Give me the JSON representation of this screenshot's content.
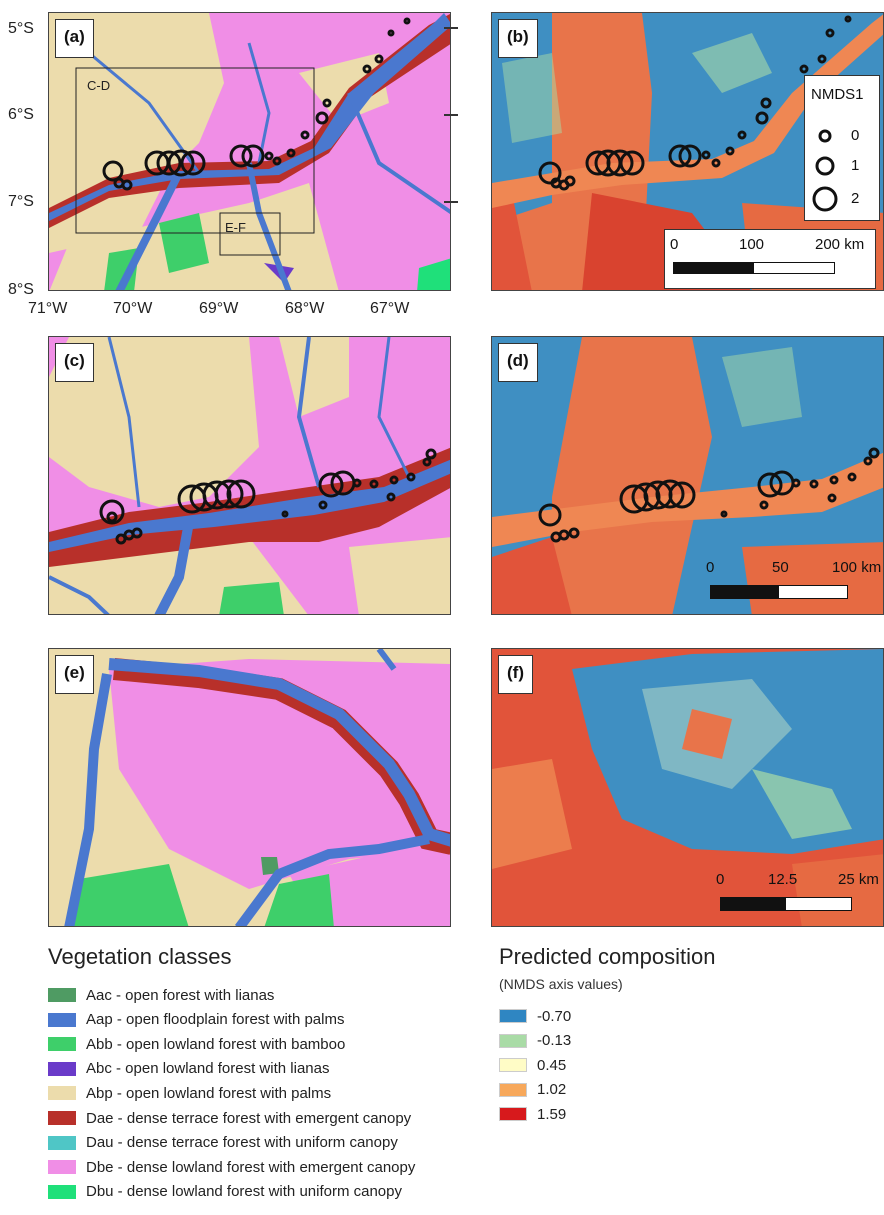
{
  "panels": {
    "a": {
      "label": "(a)",
      "box_cd": "C-D",
      "box_ef": "E-F"
    },
    "b": {
      "label": "(b)"
    },
    "c": {
      "label": "(c)"
    },
    "d": {
      "label": "(d)"
    },
    "e": {
      "label": "(e)"
    },
    "f": {
      "label": "(f)"
    }
  },
  "axes": {
    "lat_labels": [
      "5°S",
      "6°S",
      "7°S",
      "8°S"
    ],
    "lon_labels": [
      "71°W",
      "70°W",
      "69°W",
      "68°W",
      "67°W"
    ]
  },
  "nmds_legend": {
    "title": "NMDS1",
    "values": [
      "0",
      "1",
      "2"
    ]
  },
  "scalebars": {
    "b": [
      "0",
      "100",
      "200 km"
    ],
    "d": [
      "0",
      "50",
      "100 km"
    ],
    "f": [
      "0",
      "12.5",
      "25 km"
    ]
  },
  "vegetation_legend": {
    "title": "Vegetation classes",
    "items": [
      {
        "label": "Aac - open forest with lianas",
        "color": "#4f9b63"
      },
      {
        "label": "Aap - open floodplain forest with palms",
        "color": "#4a78cf"
      },
      {
        "label": "Abb - open lowland forest with bamboo",
        "color": "#3ecf6a"
      },
      {
        "label": "Abc - open lowland forest with lianas",
        "color": "#6a3bc9"
      },
      {
        "label": "Abp - open lowland forest with palms",
        "color": "#ecdcac"
      },
      {
        "label": "Dae - dense terrace forest with emergent canopy",
        "color": "#b8302a"
      },
      {
        "label": "Dau - dense terrace forest with uniform canopy",
        "color": "#4fc6c6"
      },
      {
        "label": "Dbe - dense lowland forest with emergent canopy",
        "color": "#f08ee6"
      },
      {
        "label": "Dbu - dense lowland forest with uniform canopy",
        "color": "#1fe07a"
      }
    ]
  },
  "composition_legend": {
    "title": "Predicted composition",
    "subtitle": "(NMDS axis values)",
    "items": [
      {
        "label": "-0.70",
        "color": "#2f86c2"
      },
      {
        "label": "-0.13",
        "color": "#a9dba6"
      },
      {
        "label": "0.45",
        "color": "#fffcc6"
      },
      {
        "label": "1.02",
        "color": "#f7a85b"
      },
      {
        "label": "1.59",
        "color": "#d7191c"
      }
    ]
  }
}
